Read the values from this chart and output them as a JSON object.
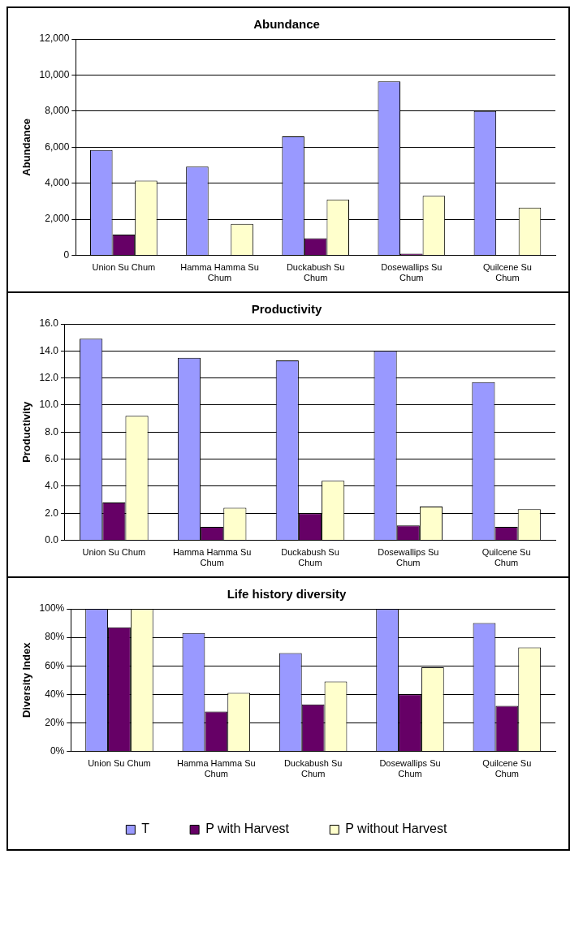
{
  "chart_data": [
    {
      "type": "bar",
      "title": "Abundance",
      "ylabel": "Abundance",
      "categories": [
        "Union Su Chum",
        "Hamma Hamma Su Chum",
        "Duckabush Su Chum",
        "Dosewallips Su Chum",
        "Quilcene Su Chum"
      ],
      "series": [
        {
          "color": "#9999ff",
          "values": [
            5850,
            4920,
            6600,
            9650,
            8000
          ]
        },
        {
          "color": "#660066",
          "values": [
            1150,
            30,
            950,
            100,
            30
          ]
        },
        {
          "color": "#ffffcc",
          "values": [
            4150,
            1750,
            3100,
            3300,
            2650
          ]
        }
      ],
      "ylim": [
        0,
        12000
      ],
      "yticks": [
        {
          "value": 0,
          "label": "0"
        },
        {
          "value": 2000,
          "label": "2,000"
        },
        {
          "value": 4000,
          "label": "4,000"
        },
        {
          "value": 6000,
          "label": "6,000"
        },
        {
          "value": 8000,
          "label": "8,000"
        },
        {
          "value": 10000,
          "label": "10,000"
        },
        {
          "value": 12000,
          "label": "12,000"
        }
      ],
      "grid": "y"
    },
    {
      "type": "bar",
      "title": "Productivity",
      "ylabel": "Productivity",
      "categories": [
        "Union Su Chum",
        "Hamma Hamma Su Chum",
        "Duckabush Su Chum",
        "Dosewallips Su Chum",
        "Quilcene Su Chum"
      ],
      "series": [
        {
          "color": "#9999ff",
          "values": [
            14.9,
            13.5,
            13.3,
            14.0,
            11.7
          ]
        },
        {
          "color": "#660066",
          "values": [
            2.8,
            1.0,
            2.0,
            1.1,
            1.0
          ]
        },
        {
          "color": "#ffffcc",
          "values": [
            9.2,
            2.4,
            4.4,
            2.5,
            2.3
          ]
        }
      ],
      "ylim": [
        0,
        16
      ],
      "yticks": [
        {
          "value": 0,
          "label": "0.0"
        },
        {
          "value": 2,
          "label": "2.0"
        },
        {
          "value": 4,
          "label": "4.0"
        },
        {
          "value": 6,
          "label": "6.0"
        },
        {
          "value": 8,
          "label": "8.0"
        },
        {
          "value": 10,
          "label": "10.0"
        },
        {
          "value": 12,
          "label": "12.0"
        },
        {
          "value": 14,
          "label": "14.0"
        },
        {
          "value": 16,
          "label": "16.0"
        }
      ],
      "grid": "y"
    },
    {
      "type": "bar",
      "title": "Life history diversity",
      "ylabel": "Diversity Index",
      "categories": [
        "Union Su Chum",
        "Hamma Hamma Su Chum",
        "Duckabush Su Chum",
        "Dosewallips Su Chum",
        "Quilcene Su Chum"
      ],
      "series": [
        {
          "name": "T",
          "color": "#9999ff",
          "values": [
            100,
            83,
            69,
            100,
            90
          ]
        },
        {
          "name": "P with Harvest",
          "color": "#660066",
          "values": [
            87,
            28,
            33,
            40,
            32
          ]
        },
        {
          "name": "P without Harvest",
          "color": "#ffffcc",
          "values": [
            100,
            41,
            49,
            59,
            73
          ]
        }
      ],
      "ylim": [
        0,
        100
      ],
      "yticks": [
        {
          "value": 0,
          "label": "0%"
        },
        {
          "value": 20,
          "label": "20%"
        },
        {
          "value": 40,
          "label": "40%"
        },
        {
          "value": 60,
          "label": "60%"
        },
        {
          "value": 80,
          "label": "80%"
        },
        {
          "value": 100,
          "label": "100%"
        }
      ],
      "grid": "y",
      "legend": "bottom"
    }
  ]
}
